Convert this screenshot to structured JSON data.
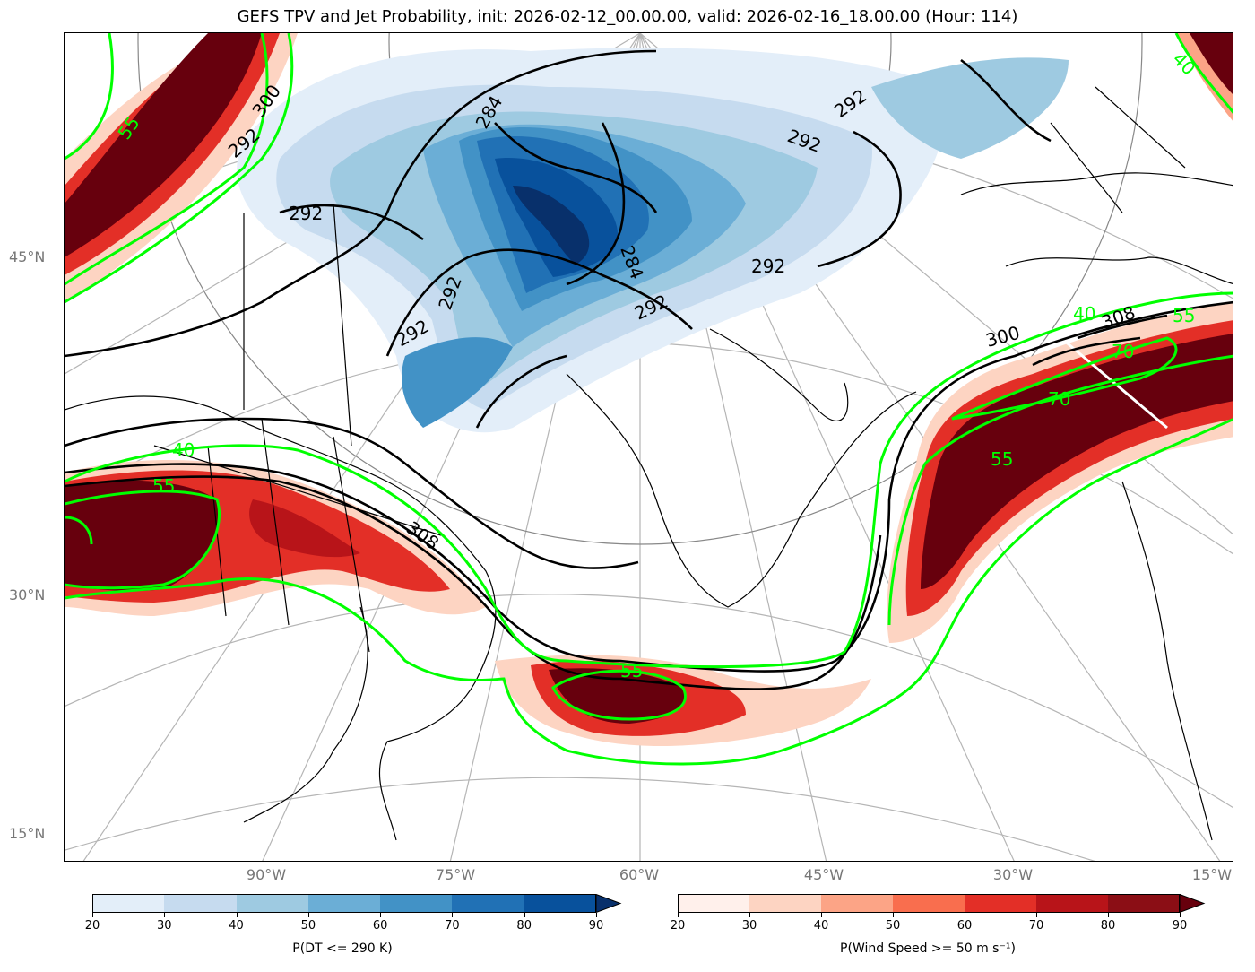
{
  "title": "GEFS TPV and Jet Probability, init: 2026-02-12_00.00.00, valid: 2026-02-16_18.00.00 (Hour: 114)",
  "lat_labels": [
    "45°N",
    "30°N",
    "15°N"
  ],
  "lon_labels": [
    "90°W",
    "75°W",
    "60°W",
    "45°W",
    "30°W",
    "15°W"
  ],
  "contour_labels_black": [
    "300",
    "292",
    "292",
    "284",
    "292",
    "292",
    "284",
    "292",
    "292",
    "292",
    "292",
    "300",
    "308",
    "308"
  ],
  "contour_labels_green": [
    "55",
    "40",
    "55",
    "40",
    "55",
    "70",
    "70",
    "55",
    "55",
    "40"
  ],
  "colorbars": [
    {
      "label": "P(DT <= 290 K)",
      "ticks": [
        "20",
        "30",
        "40",
        "50",
        "60",
        "70",
        "80",
        "90"
      ],
      "colors": [
        "#e3eef9",
        "#c6dbef",
        "#9ecae1",
        "#6baed6",
        "#4292c6",
        "#2171b5",
        "#08519c",
        "#08306b"
      ]
    },
    {
      "label": "P(Wind Speed >= 50 m s⁻¹)",
      "ticks": [
        "20",
        "30",
        "40",
        "50",
        "60",
        "70",
        "80",
        "90"
      ],
      "colors": [
        "#fff0eb",
        "#fdd4c2",
        "#fca486",
        "#f96e4e",
        "#e32f27",
        "#b81419",
        "#8b0e15",
        "#67000d"
      ]
    }
  ]
}
